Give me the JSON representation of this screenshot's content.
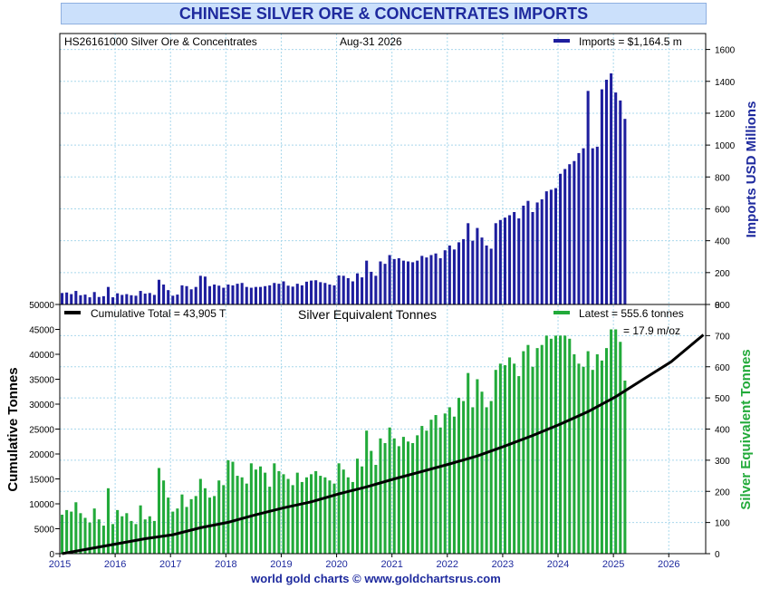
{
  "chart_data": {
    "type": "bar",
    "title": "CHINESE SILVER ORE & CONCENTRATES IMPORTS",
    "date": "Aug-31  2026",
    "source": "world gold charts © www.goldchartsrus.com",
    "colors": {
      "imports": "#1e1e9e",
      "tonnes": "#22aa3a",
      "cumulative": "#000000",
      "grid": "#a9d8ec",
      "title_text": "#1e2a9e"
    },
    "x_axis": {
      "ticks": [
        "2015",
        "2016",
        "2017",
        "2018",
        "2019",
        "2020",
        "2021",
        "2022",
        "2023",
        "2024",
        "2025",
        "2026"
      ],
      "start": "2015-01",
      "end": "2026-08"
    },
    "upper_panel": {
      "series_label": "HS26161000 Silver Ore & Concentrates",
      "legend": "Imports = $1,164.5 m",
      "ylabel": "Imports USD Millions",
      "ylim": [
        0,
        1700
      ],
      "yticks": [
        "0",
        "200",
        "400",
        "600",
        "800",
        "1000",
        "1200",
        "1400",
        "1600"
      ],
      "values": [
        72,
        75,
        65,
        85,
        58,
        62,
        45,
        78,
        47,
        52,
        110,
        45,
        70,
        60,
        65,
        58,
        55,
        85,
        68,
        72,
        60,
        155,
        125,
        90,
        55,
        62,
        120,
        115,
        95,
        110,
        180,
        175,
        115,
        125,
        118,
        105,
        125,
        120,
        130,
        135,
        110,
        105,
        110,
        110,
        115,
        120,
        135,
        130,
        145,
        118,
        112,
        130,
        120,
        143,
        150,
        152,
        140,
        135,
        125,
        120,
        182,
        180,
        165,
        145,
        195,
        170,
        275,
        205,
        180,
        270,
        255,
        310,
        285,
        290,
        275,
        270,
        265,
        275,
        305,
        295,
        310,
        320,
        290,
        340,
        370,
        345,
        390,
        410,
        510,
        400,
        480,
        420,
        370,
        350,
        510,
        530,
        545,
        560,
        580,
        540,
        620,
        650,
        580,
        640,
        660,
        710,
        720,
        730,
        820,
        850,
        880,
        900,
        950,
        980,
        1340,
        980,
        990,
        1350,
        1410,
        1450,
        1330,
        1280,
        1164.5
      ]
    },
    "lower_panel": {
      "title": "Silver Equivalent Tonnes",
      "legend_cumulative": "Cumulative Total  = 43,905 T",
      "legend_latest": "Latest    = 555.6 tonnes",
      "latest_secondary": "= 17.9 m/oz",
      "ylabel_left": "Cumulative Tonnes",
      "ylabel_right": "Silver Equivalent Tonnes",
      "ylim_left": [
        0,
        50000
      ],
      "ylim_right": [
        0,
        800
      ],
      "yticks_left": [
        "0",
        "5000",
        "10000",
        "15000",
        "20000",
        "25000",
        "30000",
        "35000",
        "40000",
        "45000",
        "50000"
      ],
      "yticks_right": [
        "0",
        "100",
        "200",
        "300",
        "400",
        "500",
        "600",
        "700",
        "800"
      ],
      "tonnes": [
        125,
        140,
        135,
        165,
        130,
        115,
        100,
        145,
        110,
        90,
        210,
        95,
        140,
        120,
        130,
        105,
        95,
        155,
        110,
        120,
        105,
        275,
        235,
        180,
        135,
        145,
        190,
        150,
        175,
        185,
        240,
        210,
        180,
        185,
        235,
        220,
        300,
        295,
        250,
        245,
        225,
        290,
        270,
        280,
        260,
        215,
        290,
        265,
        255,
        240,
        220,
        260,
        230,
        245,
        255,
        265,
        250,
        245,
        235,
        225,
        290,
        270,
        245,
        230,
        305,
        280,
        395,
        330,
        285,
        370,
        355,
        405,
        370,
        345,
        375,
        360,
        355,
        380,
        410,
        395,
        430,
        445,
        405,
        450,
        470,
        440,
        500,
        490,
        580,
        470,
        560,
        520,
        470,
        490,
        590,
        610,
        605,
        630,
        610,
        570,
        650,
        670,
        600,
        660,
        670,
        700,
        690,
        700,
        700,
        700,
        690,
        640,
        610,
        600,
        650,
        590,
        640,
        620,
        660,
        720,
        720,
        680,
        555.6
      ],
      "cumulative": [
        0,
        1000,
        2000,
        3000,
        3800,
        5200,
        6300,
        7800,
        9200,
        10400,
        12000,
        13400,
        15000,
        16500,
        18000,
        19600,
        21600,
        23700,
        26000,
        28500,
        31500,
        35000,
        38500,
        43905
      ],
      "cumulative_x": [
        "2015-01",
        "2015-07",
        "2016-01",
        "2016-07",
        "2017-01",
        "2017-07",
        "2018-01",
        "2018-07",
        "2019-01",
        "2019-07",
        "2020-01",
        "2020-07",
        "2021-01",
        "2021-07",
        "2022-01",
        "2022-07",
        "2023-01",
        "2023-07",
        "2024-01",
        "2024-07",
        "2025-01",
        "2025-07",
        "2026-01",
        "2026-08"
      ]
    }
  }
}
